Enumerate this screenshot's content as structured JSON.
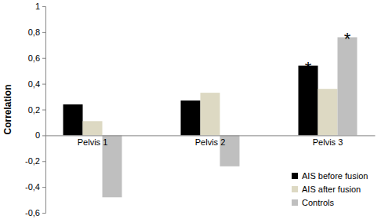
{
  "chart_data": {
    "type": "bar",
    "y_label": "Correlation",
    "categories": [
      "Pelvis 1",
      "Pelvis 2",
      "Pelvis 3"
    ],
    "series": [
      {
        "name": "AIS before fusion",
        "color": "#000000",
        "values": [
          0.24,
          0.27,
          0.54
        ]
      },
      {
        "name": "AIS after fusion",
        "color": "#ddd9c3",
        "values": [
          0.11,
          0.33,
          0.36
        ]
      },
      {
        "name": "Controls",
        "color": "#bfbfbf",
        "values": [
          -0.48,
          -0.24,
          0.76
        ]
      }
    ],
    "ylim": [
      -0.6,
      1
    ],
    "yticks": [
      {
        "value": -0.6,
        "label": "-0,6"
      },
      {
        "value": -0.4,
        "label": "-0,4"
      },
      {
        "value": -0.2,
        "label": "-0,2"
      },
      0,
      {
        "value": 0.2,
        "label": "0,2"
      },
      {
        "value": 0.4,
        "label": "0,4"
      },
      {
        "value": 0.6,
        "label": "0,6"
      },
      {
        "value": 0.8,
        "label": "0,8"
      },
      1
    ],
    "annotations": [
      {
        "text": "*",
        "category": "Pelvis 3",
        "series": "AIS before fusion"
      },
      {
        "text": "*",
        "category": "Pelvis 3",
        "series": "Controls"
      }
    ],
    "legend": "bottom-right",
    "grid": false
  }
}
